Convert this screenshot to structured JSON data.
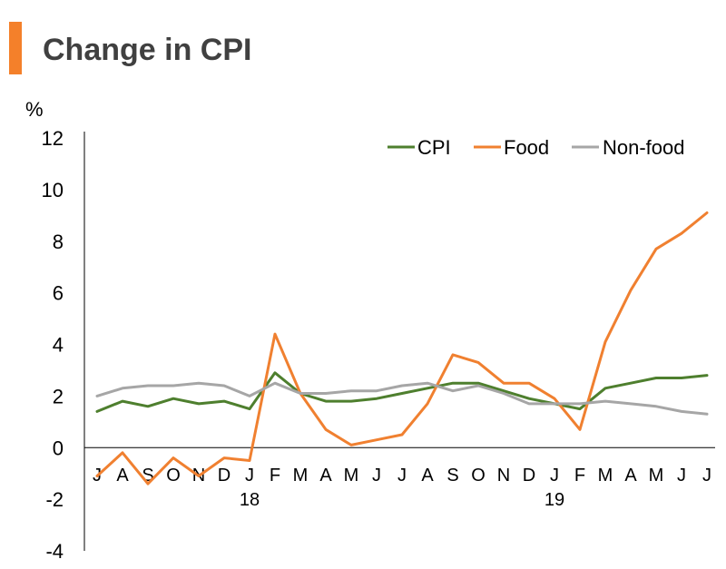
{
  "header": {
    "title": "Change in CPI",
    "accent_color": "#F4802A"
  },
  "chart_data": {
    "type": "line",
    "title": "Change in CPI",
    "ylabel": "%",
    "xlabel": "",
    "ylim": [
      -4,
      12
    ],
    "yticks": [
      12,
      10,
      8,
      6,
      4,
      2,
      0,
      -2,
      -4
    ],
    "grid": false,
    "legend_position": "top-right",
    "categories": [
      "J",
      "A",
      "S",
      "O",
      "N",
      "D",
      "J",
      "F",
      "M",
      "A",
      "M",
      "J",
      "J",
      "A",
      "S",
      "O",
      "N",
      "D",
      "J",
      "F",
      "M",
      "A",
      "M",
      "J",
      "J"
    ],
    "year_labels": [
      {
        "label": "18",
        "category_index": 6
      },
      {
        "label": "19",
        "category_index": 18
      }
    ],
    "series": [
      {
        "name": "CPI",
        "color": "#4E7F2E",
        "values": [
          1.4,
          1.8,
          1.6,
          1.9,
          1.7,
          1.8,
          1.5,
          2.9,
          2.1,
          1.8,
          1.8,
          1.9,
          2.1,
          2.3,
          2.5,
          2.5,
          2.2,
          1.9,
          1.7,
          1.5,
          2.3,
          2.5,
          2.7,
          2.7,
          2.8
        ]
      },
      {
        "name": "Food",
        "color": "#F08030",
        "values": [
          -1.1,
          -0.2,
          -1.4,
          -0.4,
          -1.1,
          -0.4,
          -0.5,
          4.4,
          2.1,
          0.7,
          0.1,
          0.3,
          0.5,
          1.7,
          3.6,
          3.3,
          2.5,
          2.5,
          1.9,
          0.7,
          4.1,
          6.1,
          7.7,
          8.3,
          9.1
        ]
      },
      {
        "name": "Non-food",
        "color": "#A6A6A6",
        "values": [
          2.0,
          2.3,
          2.4,
          2.4,
          2.5,
          2.4,
          2.0,
          2.5,
          2.1,
          2.1,
          2.2,
          2.2,
          2.4,
          2.5,
          2.2,
          2.4,
          2.1,
          1.7,
          1.7,
          1.7,
          1.8,
          1.7,
          1.6,
          1.4,
          1.3
        ]
      }
    ]
  }
}
